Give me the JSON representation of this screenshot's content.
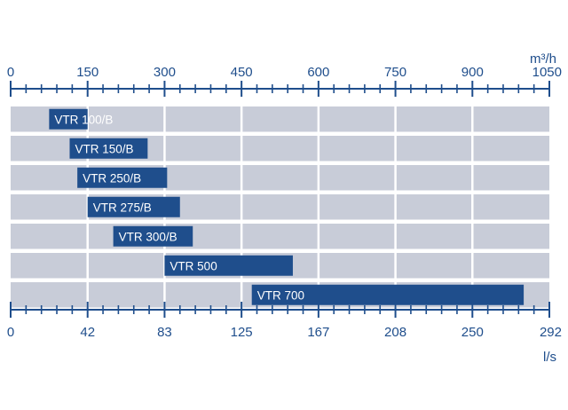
{
  "chart_data": {
    "type": "bar",
    "orientation": "horizontal",
    "categories": [
      "VTR 100/B",
      "VTR 150/B",
      "VTR 250/B",
      "VTR 275/B",
      "VTR 300/B",
      "VTR 500",
      "VTR 700"
    ],
    "ranges_m3h": [
      [
        75,
        150
      ],
      [
        115,
        267
      ],
      [
        130,
        305
      ],
      [
        150,
        330
      ],
      [
        200,
        355
      ],
      [
        300,
        550
      ],
      [
        470,
        1000
      ]
    ],
    "x_top": {
      "unit": "m³/h",
      "ticks": [
        "0",
        "150",
        "300",
        "450",
        "600",
        "750",
        "900",
        "1050"
      ],
      "range": [
        0,
        1050
      ]
    },
    "x_bottom": {
      "unit": "l/s",
      "ticks": [
        "0",
        "42",
        "83",
        "125",
        "167",
        "208",
        "250",
        "292"
      ],
      "range": [
        0,
        292
      ]
    },
    "grid": true,
    "colors": {
      "axis": "#1f4e8c",
      "bar": "#1f4e8c",
      "row_background": "#c8ccd8",
      "grid_line": "#ffffff"
    }
  }
}
